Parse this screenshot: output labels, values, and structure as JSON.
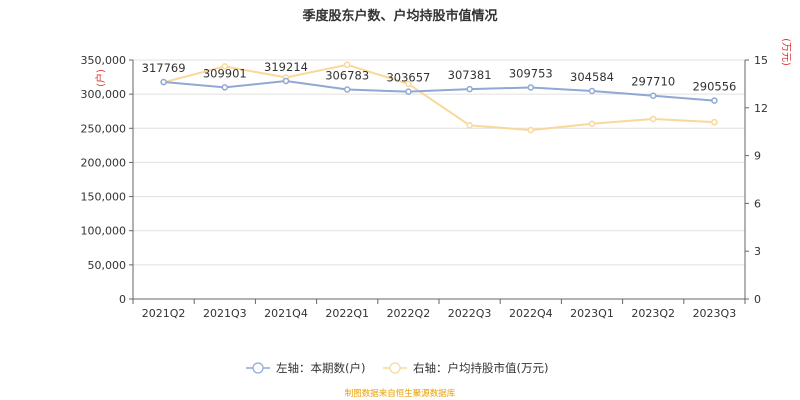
{
  "chart_data": {
    "type": "line",
    "title": "季度股东户数、户均持股市值情况",
    "categories": [
      "2021Q2",
      "2021Q3",
      "2021Q4",
      "2022Q1",
      "2022Q2",
      "2022Q3",
      "2022Q4",
      "2023Q1",
      "2023Q2",
      "2023Q3"
    ],
    "y_left": {
      "unit": "(户)",
      "min": 0,
      "max": 350000,
      "ticks": [
        "0",
        "50,000",
        "100,000",
        "150,000",
        "200,000",
        "250,000",
        "300,000",
        "350,000"
      ]
    },
    "y_right": {
      "unit": "(万元)",
      "min": 0,
      "max": 15,
      "ticks": [
        "0",
        "3",
        "6",
        "9",
        "12",
        "15"
      ]
    },
    "series": [
      {
        "name": "左轴：本期数(户)",
        "axis": "left",
        "color": "#8fa9d4",
        "values": [
          317769,
          309901,
          319214,
          306783,
          303657,
          307381,
          309753,
          304584,
          297710,
          290556
        ],
        "labels": [
          "317769",
          "309901",
          "319214",
          "306783",
          "303657",
          "307381",
          "309753",
          "304584",
          "297710",
          "290556"
        ]
      },
      {
        "name": "右轴：户均持股市值(万元)",
        "axis": "right",
        "color": "#f9d899",
        "values": [
          13.6,
          14.6,
          13.9,
          14.7,
          13.5,
          10.9,
          10.6,
          11.0,
          11.3,
          11.1
        ]
      }
    ],
    "grid": true,
    "legend": "bottom"
  },
  "source": "制图数据来自恒生聚源数据库"
}
